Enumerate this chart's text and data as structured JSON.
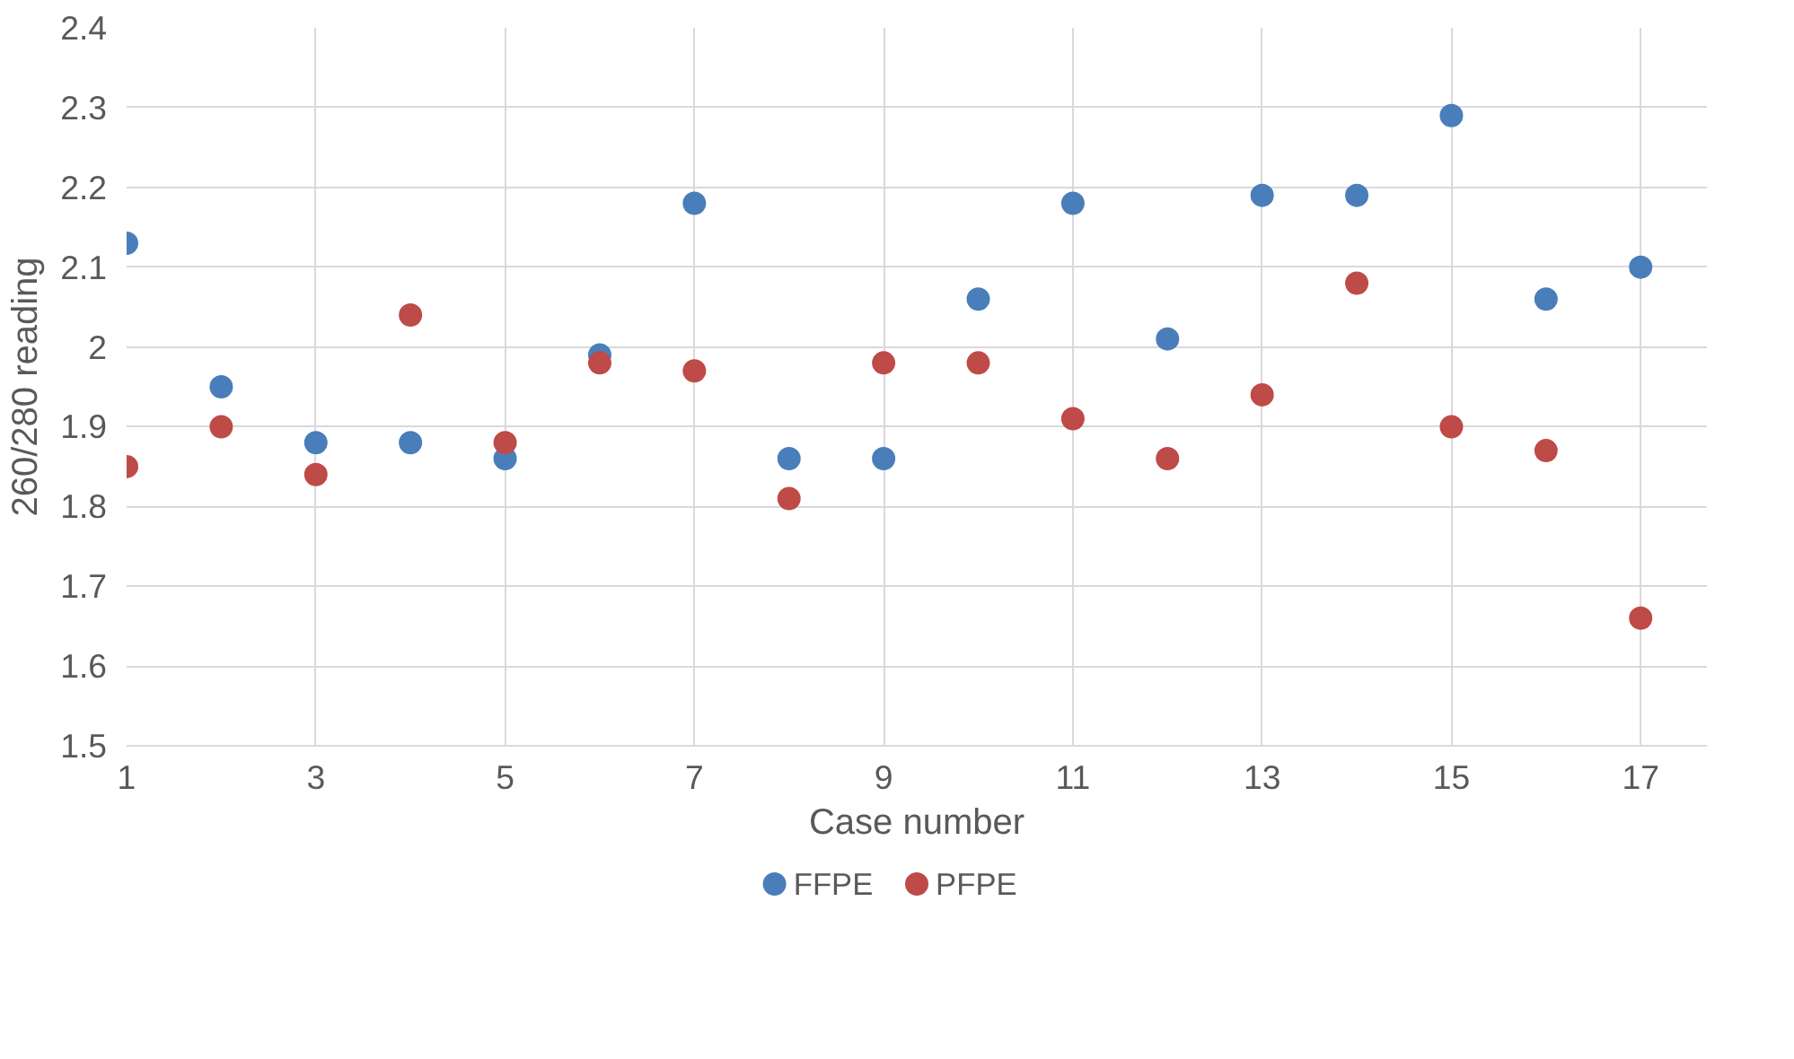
{
  "chart_data": {
    "type": "scatter",
    "xlabel": "Case number",
    "ylabel": "260/280 reading",
    "x": [
      1,
      2,
      3,
      4,
      5,
      6,
      7,
      8,
      9,
      10,
      11,
      12,
      13,
      14,
      15,
      16,
      17
    ],
    "series": [
      {
        "name": "FFPE",
        "color": "#4a7ebb",
        "values": [
          2.13,
          1.95,
          1.88,
          1.88,
          1.86,
          1.99,
          2.18,
          1.86,
          1.86,
          2.06,
          2.18,
          2.01,
          2.19,
          2.19,
          2.29,
          2.06,
          2.1
        ]
      },
      {
        "name": "PFPE",
        "color": "#be4b48",
        "values": [
          1.85,
          1.9,
          1.84,
          2.04,
          1.88,
          1.98,
          1.97,
          1.81,
          1.98,
          1.98,
          1.91,
          1.86,
          1.94,
          2.08,
          1.9,
          1.87,
          1.66
        ]
      }
    ],
    "xlim": [
      1,
      17.7
    ],
    "xticks": [
      1,
      3,
      5,
      7,
      9,
      11,
      13,
      15,
      17
    ],
    "ylim": [
      1.5,
      2.4
    ],
    "yticks": [
      1.5,
      1.6,
      1.7,
      1.8,
      1.9,
      2,
      2.1,
      2.2,
      2.3,
      2.4
    ],
    "grid": true,
    "legend": "bottom",
    "marker": "circle"
  }
}
